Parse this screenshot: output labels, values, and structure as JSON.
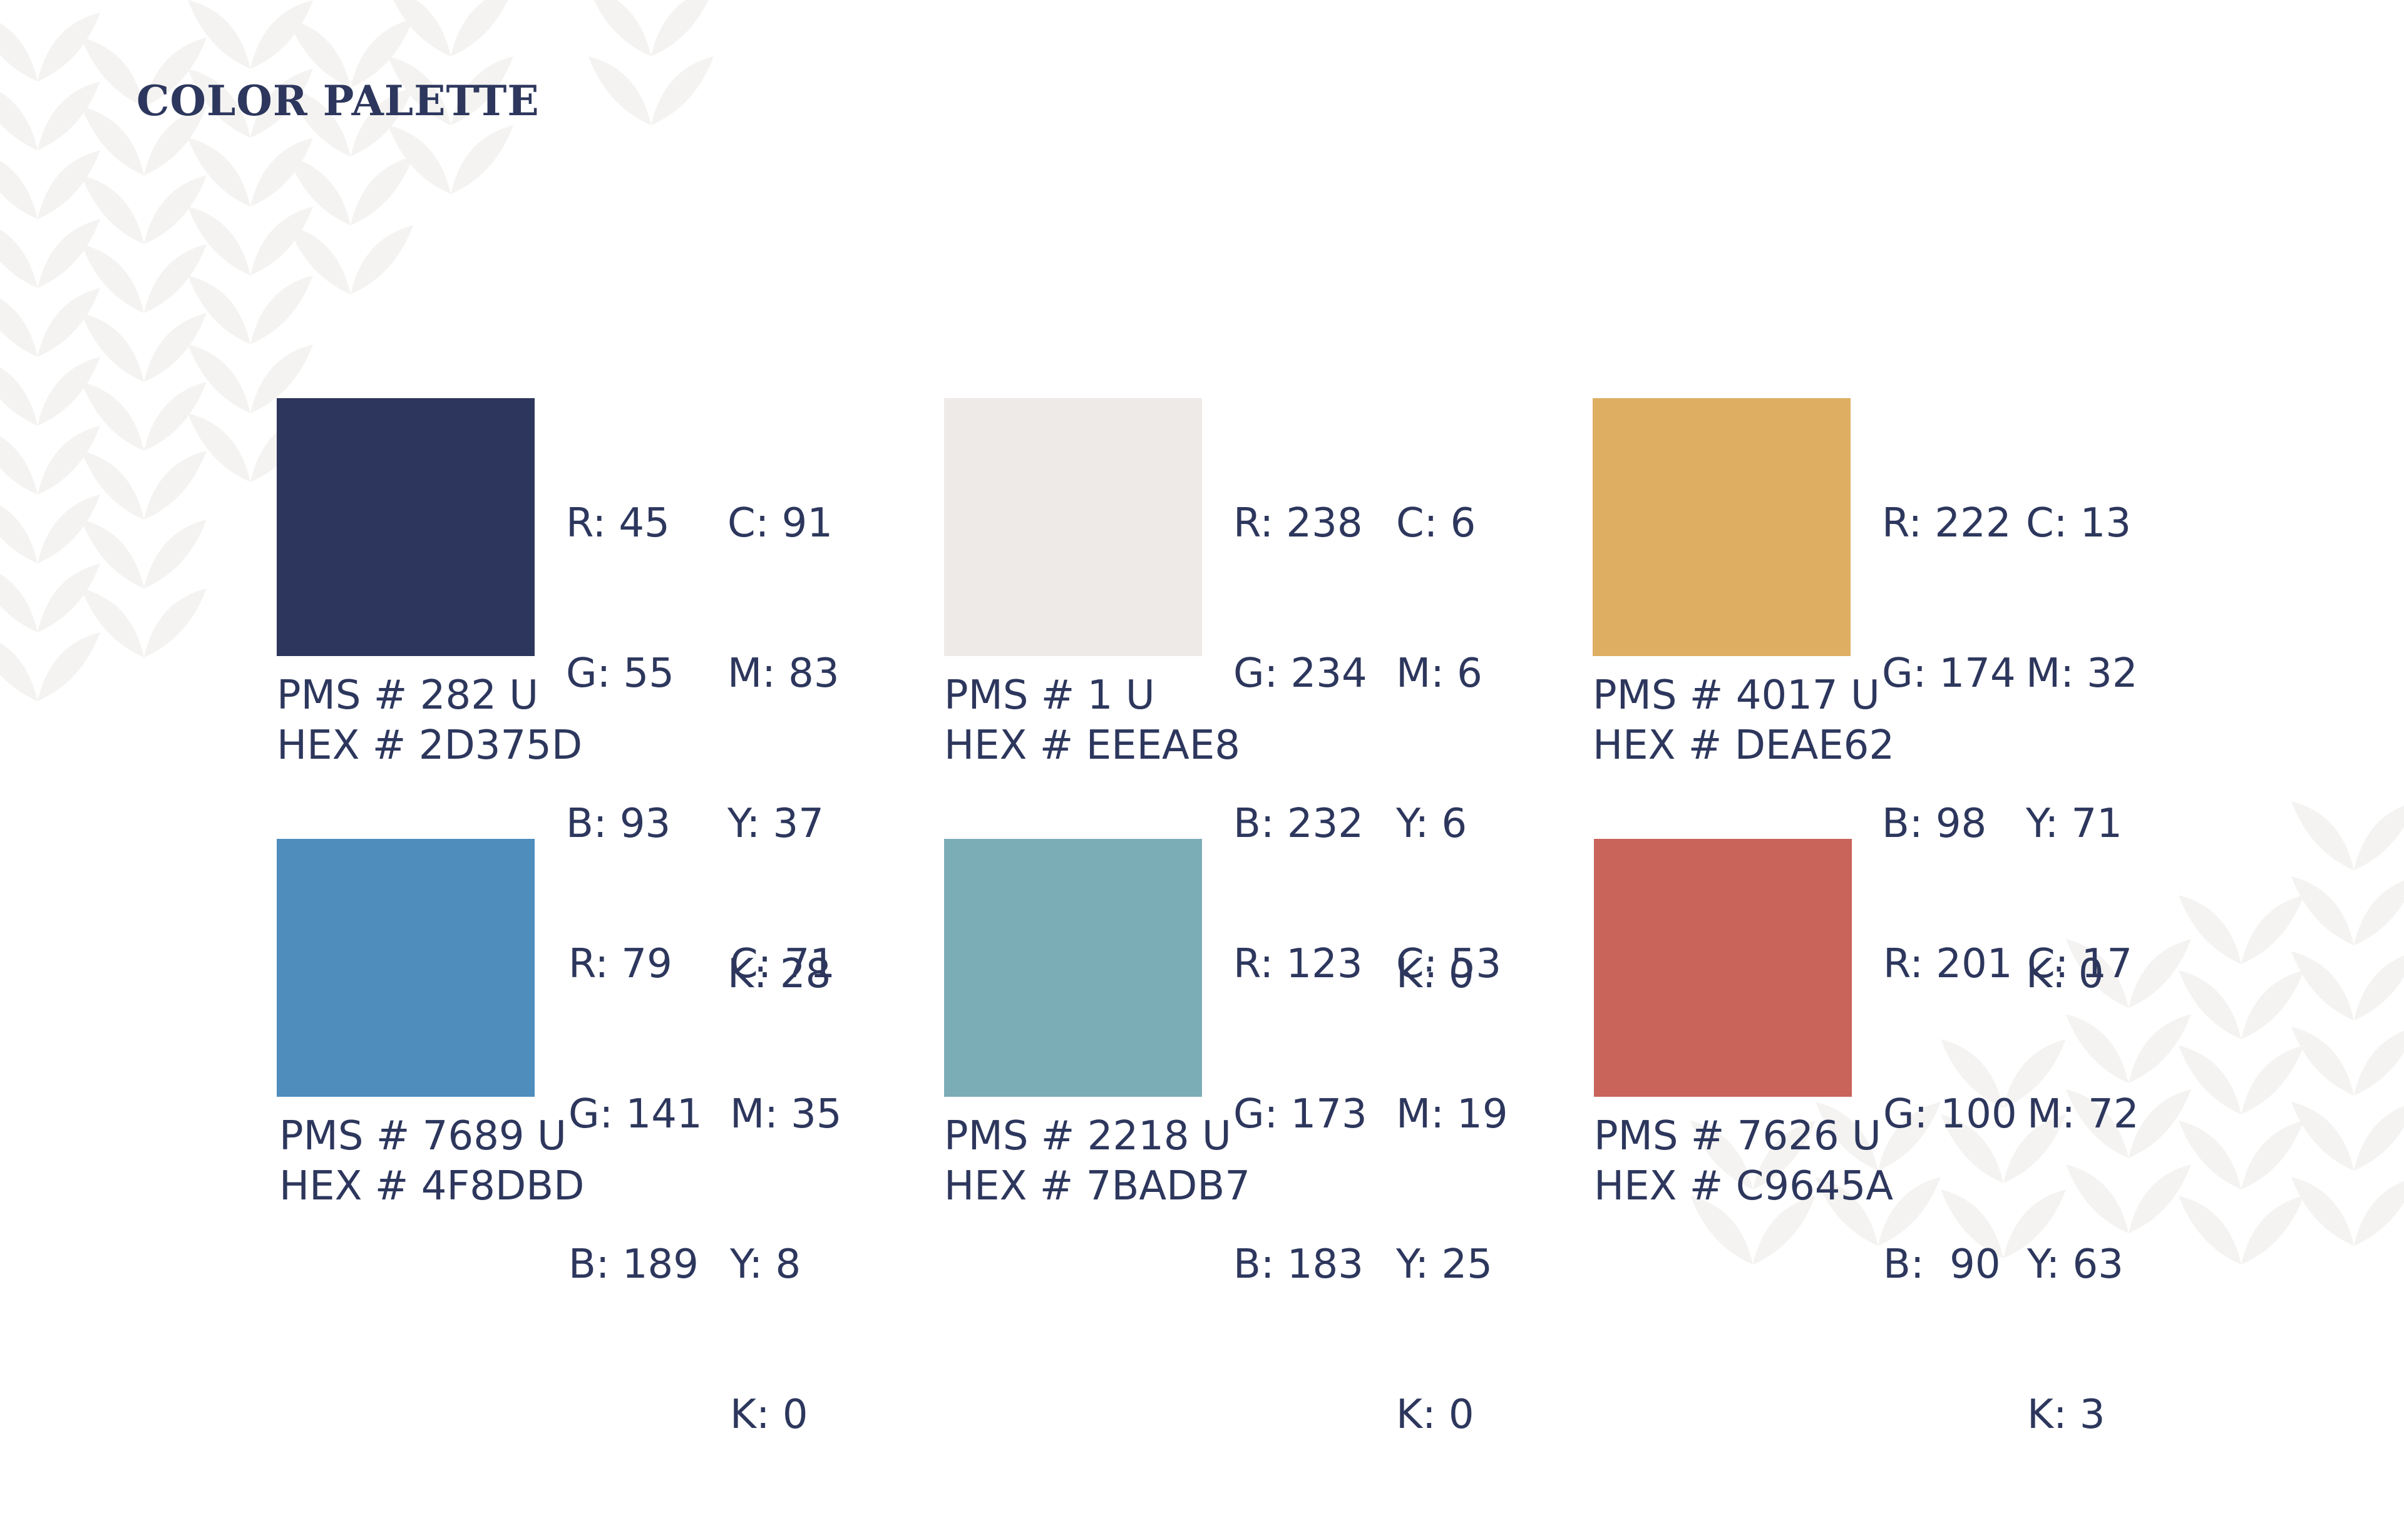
{
  "title": "COLOR PALETTE",
  "background_pattern_color": "#F4F3F1",
  "text_color": "#2D375D",
  "colors": [
    {
      "swatch": "#2D375D",
      "rgb": [
        "R: 45",
        "G: 55",
        "B: 93"
      ],
      "cmyk": [
        "C: 91",
        "M: 83",
        "Y: 37",
        "K: 28"
      ],
      "pms": "PMS # 282 U",
      "hex": "HEX # 2D375D"
    },
    {
      "swatch": "#EEEAE8",
      "rgb": [
        "R: 238",
        "G: 234",
        "B: 232"
      ],
      "cmyk": [
        "C: 6",
        "M: 6",
        "Y: 6",
        "K: 0"
      ],
      "pms": "PMS # 1 U",
      "hex": "HEX # EEEAE8"
    },
    {
      "swatch": "#DEAE62",
      "rgb": [
        "R: 222",
        "G: 174",
        "B: 98"
      ],
      "cmyk": [
        "C: 13",
        "M: 32",
        "Y: 71",
        "K: 0"
      ],
      "pms": "PMS # 4017 U",
      "hex": "HEX # DEAE62"
    },
    {
      "swatch": "#4F8DBD",
      "rgb": [
        "R: 79",
        "G: 141",
        "B: 189"
      ],
      "cmyk": [
        "C: 71",
        "M: 35",
        "Y: 8",
        "K: 0"
      ],
      "pms": "PMS # 7689 U",
      "hex": "HEX # 4F8DBD"
    },
    {
      "swatch": "#7BADB7",
      "rgb": [
        "R: 123",
        "G: 173",
        "B: 183"
      ],
      "cmyk": [
        "C: 53",
        "M: 19",
        "Y: 25",
        "K: 0"
      ],
      "pms": "PMS # 2218 U",
      "hex": "HEX # 7BADB7"
    },
    {
      "swatch": "#C9645A",
      "rgb": [
        "R: 201",
        "G: 100",
        "B:  90"
      ],
      "cmyk": [
        "C: 17",
        "M: 72",
        "Y: 63",
        "K: 3"
      ],
      "pms": "PMS # 7626 U",
      "hex": "HEX # C9645A"
    }
  ]
}
